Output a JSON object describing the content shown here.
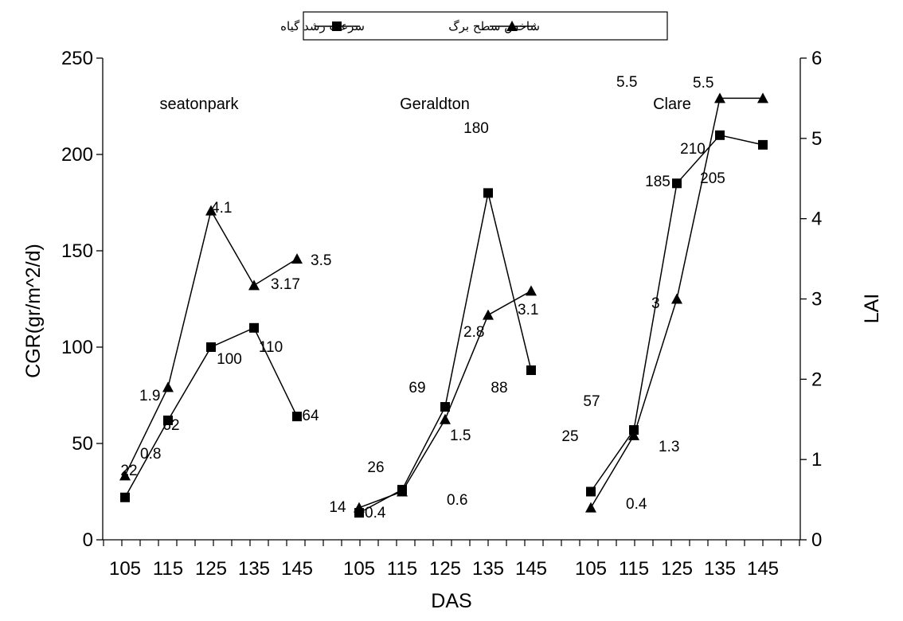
{
  "chart_data": {
    "type": "line",
    "xlabel": "DAS",
    "ylabel": "CGR(gr/m^2/d)",
    "y2label": "LAI",
    "ylim": [
      0,
      250
    ],
    "y2lim": [
      0,
      6
    ],
    "yticks": [
      "0",
      "50",
      "100",
      "150",
      "200",
      "250"
    ],
    "y2ticks": [
      "0",
      "1",
      "2",
      "3",
      "4",
      "5",
      "6"
    ],
    "x": [
      105,
      115,
      125,
      135,
      145
    ],
    "xticks": [
      "105",
      "115",
      "125",
      "135",
      "145"
    ],
    "grid": false,
    "legend_position": "top-center",
    "legend": [
      {
        "name": "سرعت رشد گیاه",
        "marker": "square",
        "axis": "left"
      },
      {
        "name": "شاخص سطح برگ",
        "marker": "triangle",
        "axis": "right"
      }
    ],
    "groups": [
      {
        "name": "seatonpark",
        "cgr": [
          22,
          62,
          100,
          110,
          64
        ],
        "cgr_labels": [
          "22",
          "62",
          "100",
          "110",
          "64"
        ],
        "lai": [
          0.8,
          1.9,
          4.1,
          3.17,
          3.5
        ],
        "lai_labels": [
          "0.8",
          "1.9",
          "4.1",
          "3.17",
          "3.5"
        ]
      },
      {
        "name": "Geraldton",
        "cgr": [
          14,
          26,
          69,
          180,
          88
        ],
        "cgr_labels": [
          "14",
          "26",
          "69",
          "180",
          "88"
        ],
        "lai": [
          0.4,
          0.6,
          1.5,
          2.8,
          3.1
        ],
        "lai_labels": [
          "0.4",
          "0.6",
          "1.5",
          "2.8",
          "3.1"
        ]
      },
      {
        "name": "Clare",
        "cgr": [
          25,
          57,
          185,
          210,
          205
        ],
        "cgr_labels": [
          "25",
          "57",
          "185",
          "210",
          "205"
        ],
        "lai": [
          0.4,
          1.3,
          3,
          5.5,
          5.5
        ],
        "lai_labels": [
          "0.4",
          "1.3",
          "3",
          "5.5",
          "5.5"
        ]
      }
    ]
  }
}
